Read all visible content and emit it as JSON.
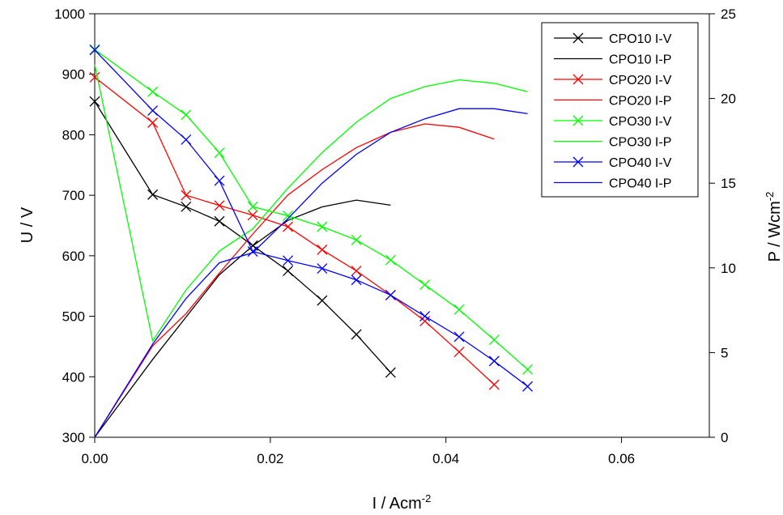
{
  "chart_data": {
    "type": "line",
    "title": "",
    "x_axis": {
      "label": "I / Acm",
      "label_sup": "-2",
      "range": [
        0,
        0.07
      ],
      "ticks": [
        "0.00",
        "0.02",
        "0.04",
        "0.06"
      ],
      "tick_values": [
        0,
        0.02,
        0.04,
        0.06
      ]
    },
    "y_axis_left": {
      "label": "U / V",
      "range": [
        300,
        1000
      ],
      "ticks": [
        "300",
        "400",
        "500",
        "600",
        "700",
        "800",
        "900",
        "1000"
      ],
      "tick_values": [
        300,
        400,
        500,
        600,
        700,
        800,
        900,
        1000
      ]
    },
    "y_axis_right": {
      "label": "P / Wcm",
      "label_sup": "-2",
      "range": [
        0,
        25
      ],
      "ticks": [
        "0",
        "5",
        "10",
        "15",
        "20",
        "25"
      ],
      "tick_values": [
        0,
        5,
        10,
        15,
        20,
        25
      ]
    },
    "grid": false,
    "legend_position": "top-right",
    "series": [
      {
        "name": "CPO10 I-V",
        "axis": "left",
        "color": "#000000",
        "marker": "x",
        "x": [
          0.0,
          0.0066,
          0.0104,
          0.0142,
          0.018,
          0.022,
          0.0259,
          0.0298,
          0.0337
        ],
        "y": [
          855,
          701,
          681,
          657,
          617,
          575,
          526,
          470,
          407
        ]
      },
      {
        "name": "CPO10 I-P",
        "axis": "right",
        "color": "#000000",
        "marker": "none",
        "x": [
          0.0,
          0.0066,
          0.0104,
          0.0142,
          0.018,
          0.022,
          0.0259,
          0.0298,
          0.0337
        ],
        "y": [
          0,
          4.6,
          7.1,
          9.6,
          11.3,
          12.8,
          13.6,
          14.0,
          13.7
        ]
      },
      {
        "name": "CPO20 I-V",
        "axis": "left",
        "color": "#ff0000",
        "marker": "x",
        "x": [
          0.0,
          0.0066,
          0.0104,
          0.0142,
          0.018,
          0.022,
          0.0259,
          0.0298,
          0.0337,
          0.0376,
          0.0415,
          0.0455
        ],
        "y": [
          895,
          820,
          700,
          683,
          667,
          648,
          610,
          575,
          535,
          492,
          441,
          387
        ]
      },
      {
        "name": "CPO20 I-P",
        "axis": "right",
        "color": "#ff0000",
        "marker": "none",
        "x": [
          0.0,
          0.0066,
          0.0104,
          0.0142,
          0.018,
          0.022,
          0.0259,
          0.0298,
          0.0337,
          0.0376,
          0.0415,
          0.0455
        ],
        "y": [
          0,
          5.4,
          7.3,
          9.7,
          12.0,
          14.3,
          15.8,
          17.1,
          18.0,
          18.5,
          18.3,
          17.6
        ]
      },
      {
        "name": "CPO30 I-V",
        "axis": "left",
        "color": "#00ff00",
        "marker": "x",
        "x": [
          0.0,
          0.0066,
          0.0104,
          0.0142,
          0.018,
          0.022,
          0.0259,
          0.0298,
          0.0337,
          0.0376,
          0.0415,
          0.0455,
          0.0493
        ],
        "y": [
          941,
          871,
          833,
          770,
          681,
          666,
          648,
          626,
          593,
          552,
          511,
          461,
          412
        ]
      },
      {
        "name": "CPO30 I-P",
        "axis": "right",
        "color": "#00ff00",
        "marker": "none",
        "x": [
          0.0,
          0.0066,
          0.0104,
          0.0142,
          0.018,
          0.022,
          0.0259,
          0.0298,
          0.0337,
          0.0376,
          0.0415,
          0.0455,
          0.0493
        ],
        "y": [
          22.0,
          5.7,
          8.7,
          11.0,
          12.3,
          14.7,
          16.8,
          18.6,
          20.0,
          20.7,
          21.1,
          20.9,
          20.4
        ]
      },
      {
        "name": "CPO40 I-V",
        "axis": "left",
        "color": "#0000ff",
        "marker": "x",
        "x": [
          0.0,
          0.0066,
          0.0104,
          0.0142,
          0.018,
          0.022,
          0.0259,
          0.0298,
          0.0337,
          0.0376,
          0.0415,
          0.0455,
          0.0493
        ],
        "y": [
          940,
          840,
          792,
          724,
          607,
          592,
          579,
          560,
          535,
          500,
          466,
          426,
          384
        ]
      },
      {
        "name": "CPO40 I-P",
        "axis": "right",
        "color": "#0000ff",
        "marker": "none",
        "x": [
          0.0,
          0.0066,
          0.0104,
          0.0142,
          0.018,
          0.022,
          0.0259,
          0.0298,
          0.0337,
          0.0376,
          0.0415,
          0.0455,
          0.0493
        ],
        "y": [
          0,
          5.5,
          8.2,
          10.3,
          10.9,
          12.9,
          15.0,
          16.7,
          18.0,
          18.8,
          19.4,
          19.4,
          19.1
        ]
      }
    ]
  }
}
